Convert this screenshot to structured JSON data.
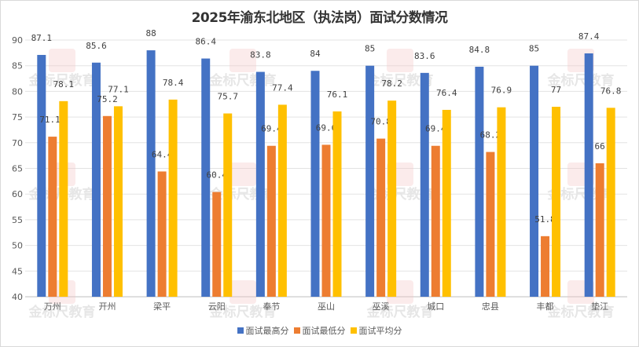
{
  "chart_data": {
    "type": "bar",
    "title": "2025年渝东北地区（执法岗）面试分数情况",
    "xlabel": "",
    "ylabel": "",
    "ylim": [
      40,
      90
    ],
    "yticks": [
      40,
      45,
      50,
      55,
      60,
      65,
      70,
      75,
      80,
      85,
      90
    ],
    "grid": true,
    "legend_position": "bottom",
    "categories": [
      "万州",
      "开州",
      "梁平",
      "云阳",
      "奉节",
      "巫山",
      "巫溪",
      "城口",
      "忠县",
      "丰都",
      "垫江"
    ],
    "series": [
      {
        "name": "面试最高分",
        "color": "#4472C4",
        "values": [
          87.1,
          85.6,
          88,
          86.4,
          83.8,
          84,
          85,
          83.6,
          84.8,
          85,
          87.4
        ],
        "labels": [
          "87.1",
          "85.6",
          "88",
          "86.4",
          "83.8",
          "84",
          "85",
          "83.6",
          "84.8",
          "85",
          "87.4"
        ]
      },
      {
        "name": "面试最低分",
        "color": "#ED7D31",
        "values": [
          71.18,
          75.2,
          64.4,
          60.4,
          69.4,
          69.6,
          70.8,
          69.4,
          68.2,
          51.8,
          66
        ],
        "labels": [
          "71.18",
          "75.2",
          "64.4",
          "60.4",
          "69.4",
          "69.6",
          "70.8",
          "69.4",
          "68.2",
          "51.8",
          "66"
        ]
      },
      {
        "name": "面试平均分",
        "color": "#FFC000",
        "values": [
          78.1,
          77.1,
          78.4,
          75.7,
          77.4,
          76.1,
          78.2,
          76.4,
          76.9,
          77,
          76.8
        ],
        "labels": [
          "78.1",
          "77.1",
          "78.4",
          "75.7",
          "77.4",
          "76.1",
          "78.2",
          "76.4",
          "76.9",
          "77",
          "76.8"
        ]
      }
    ],
    "watermark": "金标尺教育"
  }
}
